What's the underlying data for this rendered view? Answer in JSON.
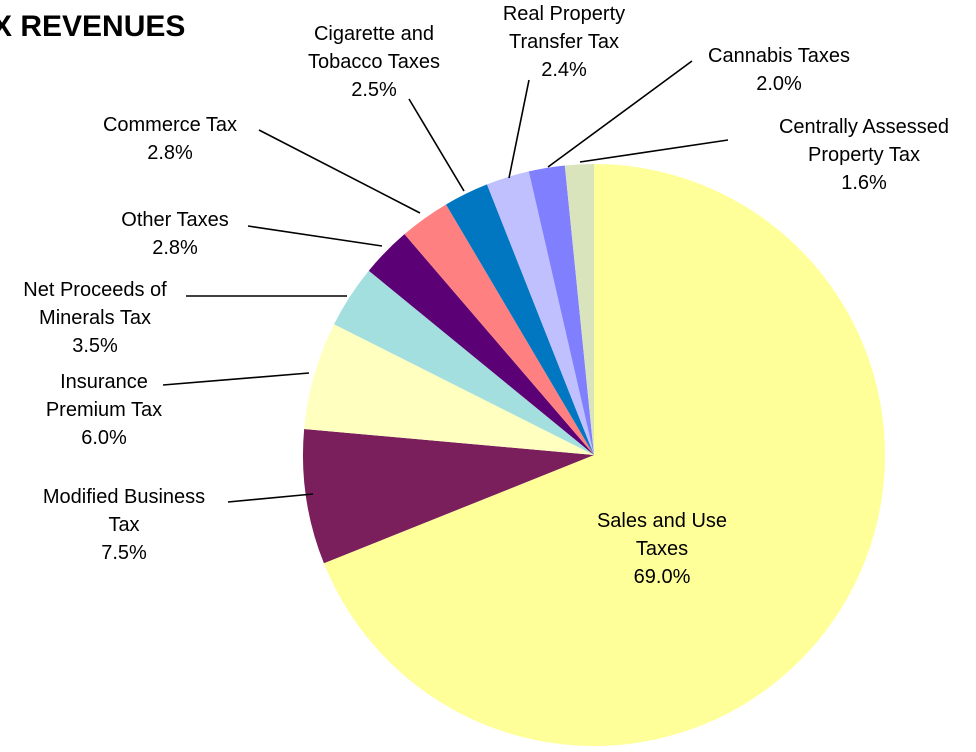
{
  "chart_data": {
    "type": "pie",
    "title": "X REVENUES",
    "start_angle_deg": 0,
    "direction": "clockwise",
    "slices": [
      {
        "label": "Sales and Use Taxes",
        "lines": [
          "Sales and Use",
          "Taxes",
          "69.0%"
        ],
        "value": 69.0,
        "color": "#FFFF99"
      },
      {
        "label": "Modified Business Tax",
        "lines": [
          "Modified Business",
          "Tax",
          "7.5%"
        ],
        "value": 7.5,
        "color": "#7B1F5C"
      },
      {
        "label": "Insurance Premium Tax",
        "lines": [
          "Insurance",
          "Premium Tax",
          "6.0%"
        ],
        "value": 6.0,
        "color": "#FFFFC0"
      },
      {
        "label": "Net Proceeds of Minerals Tax",
        "lines": [
          "Net Proceeds of",
          "Minerals Tax",
          "3.5%"
        ],
        "value": 3.5,
        "color": "#A3DFDF"
      },
      {
        "label": "Other Taxes",
        "lines": [
          "Other Taxes",
          "2.8%"
        ],
        "value": 2.8,
        "color": "#5C0075"
      },
      {
        "label": "Commerce Tax",
        "lines": [
          "Commerce Tax",
          "2.8%"
        ],
        "value": 2.8,
        "color": "#FF8080"
      },
      {
        "label": "Cigarette and Tobacco Taxes",
        "lines": [
          "Cigarette and",
          "Tobacco Taxes",
          "2.5%"
        ],
        "value": 2.5,
        "color": "#0077C0"
      },
      {
        "label": "Real Property Transfer Tax",
        "lines": [
          "Real Property",
          "Transfer Tax",
          "2.4%"
        ],
        "value": 2.4,
        "color": "#C0C0FF"
      },
      {
        "label": "Cannabis Taxes",
        "lines": [
          "Cannabis Taxes",
          "2.0%"
        ],
        "value": 2.0,
        "color": "#8080FF"
      },
      {
        "label": "Centrally Assessed Property Tax",
        "lines": [
          "Centrally Assessed",
          "Property Tax",
          "1.6%"
        ],
        "value": 1.6,
        "color": "#D9E4BC"
      }
    ]
  }
}
